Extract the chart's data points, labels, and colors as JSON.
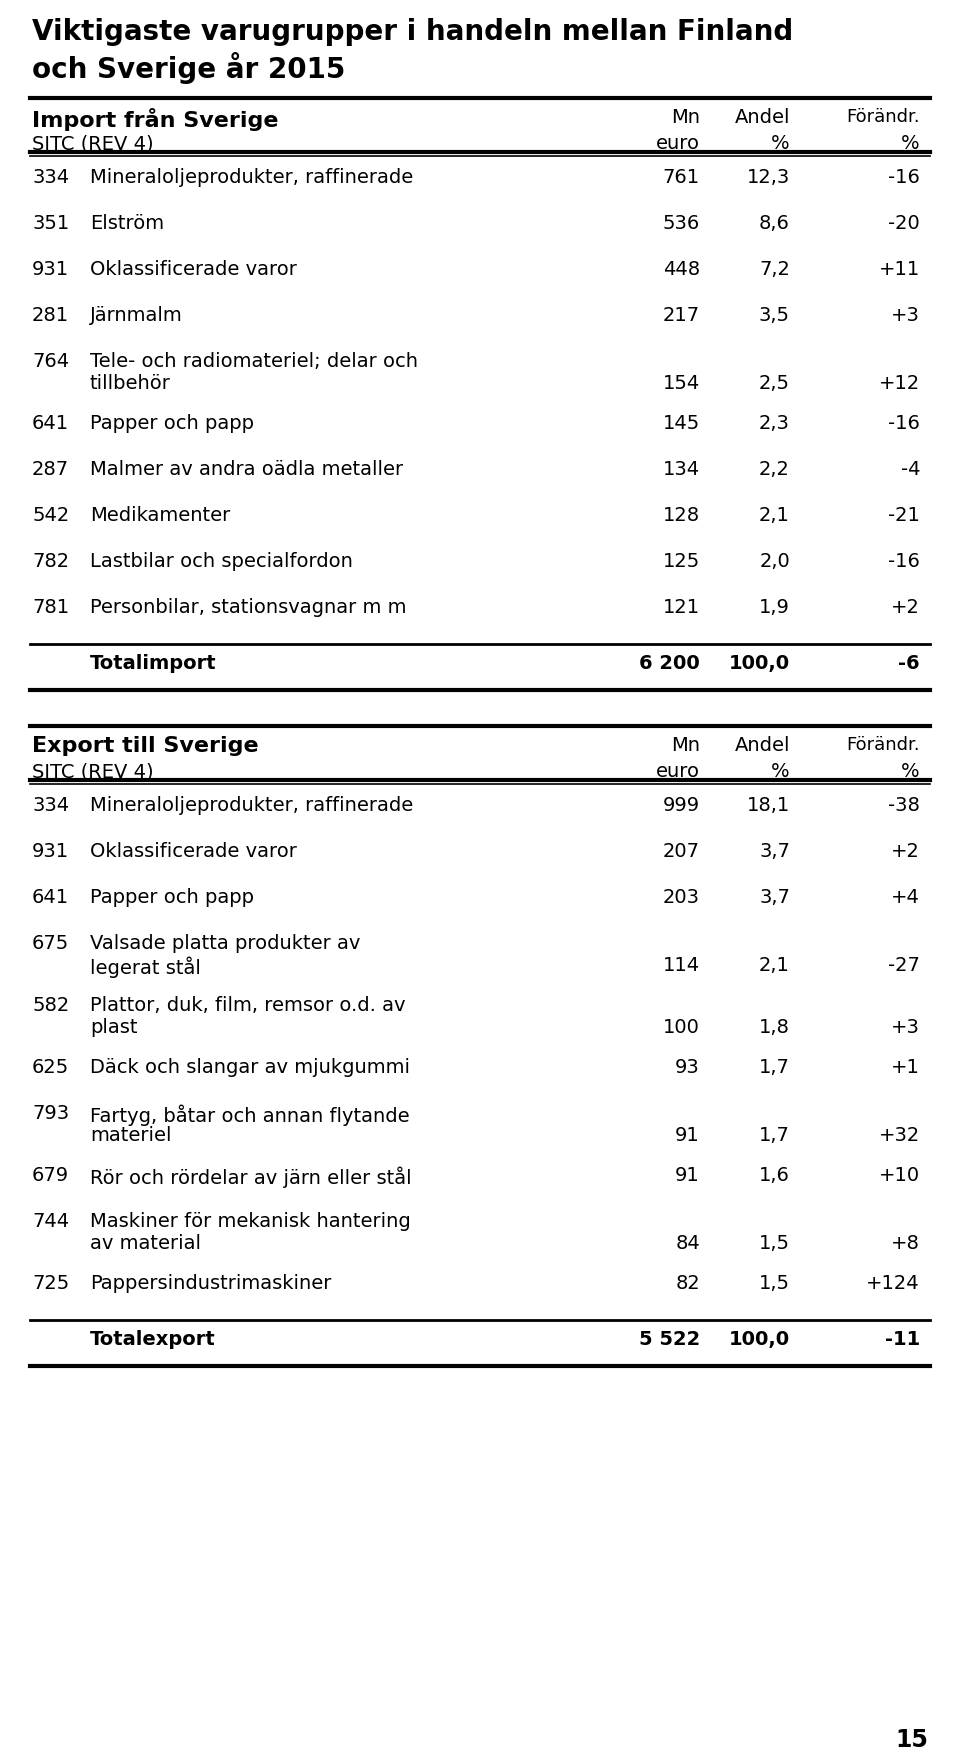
{
  "title_line1": "Viktigaste varugrupper i handeln mellan Finland",
  "title_line2": "och Sverige år 2015",
  "import_section_title": "Import från Sverige",
  "import_col1": "Mn",
  "import_col2": "Andel",
  "import_col3": "Förändr.",
  "import_col1b": "euro",
  "import_col2b": "%",
  "import_col3b": "%",
  "import_sitc": "SITC (REV 4)",
  "import_rows": [
    {
      "code": "334",
      "desc": "Mineraloljeprodukter, raffinerade",
      "mn": "761",
      "andel": "12,3",
      "forandr": "-16",
      "two_line": false
    },
    {
      "code": "351",
      "desc": "Elström",
      "mn": "536",
      "andel": "8,6",
      "forandr": "-20",
      "two_line": false
    },
    {
      "code": "931",
      "desc": "Oklassificerade varor",
      "mn": "448",
      "andel": "7,2",
      "forandr": "+11",
      "two_line": false
    },
    {
      "code": "281",
      "desc": "Järnmalm",
      "mn": "217",
      "andel": "3,5",
      "forandr": "+3",
      "two_line": false
    },
    {
      "code": "764",
      "desc1": "Tele- och radiomateriel; delar och",
      "desc2": "tillbehör",
      "mn": "154",
      "andel": "2,5",
      "forandr": "+12",
      "two_line": true
    },
    {
      "code": "641",
      "desc": "Papper och papp",
      "mn": "145",
      "andel": "2,3",
      "forandr": "-16",
      "two_line": false
    },
    {
      "code": "287",
      "desc": "Malmer av andra oädla metaller",
      "mn": "134",
      "andel": "2,2",
      "forandr": "-4",
      "two_line": false
    },
    {
      "code": "542",
      "desc": "Medikamenter",
      "mn": "128",
      "andel": "2,1",
      "forandr": "-21",
      "two_line": false
    },
    {
      "code": "782",
      "desc": "Lastbilar och specialfordon",
      "mn": "125",
      "andel": "2,0",
      "forandr": "-16",
      "two_line": false
    },
    {
      "code": "781",
      "desc": "Personbilar, stationsvagnar m m",
      "mn": "121",
      "andel": "1,9",
      "forandr": "+2",
      "two_line": false
    }
  ],
  "import_total_label": "Totalimport",
  "import_total_mn": "6 200",
  "import_total_andel": "100,0",
  "import_total_forandr": "-6",
  "export_section_title": "Export till Sverige",
  "export_sitc": "SITC (REV 4)",
  "export_col1": "Mn",
  "export_col2": "Andel",
  "export_col3": "Förändr.",
  "export_col1b": "euro",
  "export_col2b": "%",
  "export_col3b": "%",
  "export_rows": [
    {
      "code": "334",
      "desc": "Mineraloljeprodukter, raffinerade",
      "mn": "999",
      "andel": "18,1",
      "forandr": "-38",
      "two_line": false
    },
    {
      "code": "931",
      "desc": "Oklassificerade varor",
      "mn": "207",
      "andel": "3,7",
      "forandr": "+2",
      "two_line": false
    },
    {
      "code": "641",
      "desc": "Papper och papp",
      "mn": "203",
      "andel": "3,7",
      "forandr": "+4",
      "two_line": false
    },
    {
      "code": "675",
      "desc1": "Valsade platta produkter av",
      "desc2": "legerat stål",
      "mn": "114",
      "andel": "2,1",
      "forandr": "-27",
      "two_line": true
    },
    {
      "code": "582",
      "desc1": "Plattor, duk, film, remsor o.d. av",
      "desc2": "plast",
      "mn": "100",
      "andel": "1,8",
      "forandr": "+3",
      "two_line": true
    },
    {
      "code": "625",
      "desc": "Däck och slangar av mjukgummi",
      "mn": "93",
      "andel": "1,7",
      "forandr": "+1",
      "two_line": false
    },
    {
      "code": "793",
      "desc1": "Fartyg, båtar och annan flytande",
      "desc2": "materiel",
      "mn": "91",
      "andel": "1,7",
      "forandr": "+32",
      "two_line": true
    },
    {
      "code": "679",
      "desc": "Rör och rördelar av järn eller stål",
      "mn": "91",
      "andel": "1,6",
      "forandr": "+10",
      "two_line": false
    },
    {
      "code": "744",
      "desc1": "Maskiner för mekanisk hantering",
      "desc2": "av material",
      "mn": "84",
      "andel": "1,5",
      "forandr": "+8",
      "two_line": true
    },
    {
      "code": "725",
      "desc": "Pappersindustrimaskiner",
      "mn": "82",
      "andel": "1,5",
      "forandr": "+124",
      "two_line": false
    }
  ],
  "export_total_label": "Totalexport",
  "export_total_mn": "5 522",
  "export_total_andel": "100,0",
  "export_total_forandr": "-11",
  "page_number": "15",
  "bg_color": "#ffffff",
  "text_color": "#000000",
  "title_fontsize": 20,
  "header_fontsize": 16,
  "body_fontsize": 14,
  "total_fontsize": 14,
  "page_fontsize": 17
}
